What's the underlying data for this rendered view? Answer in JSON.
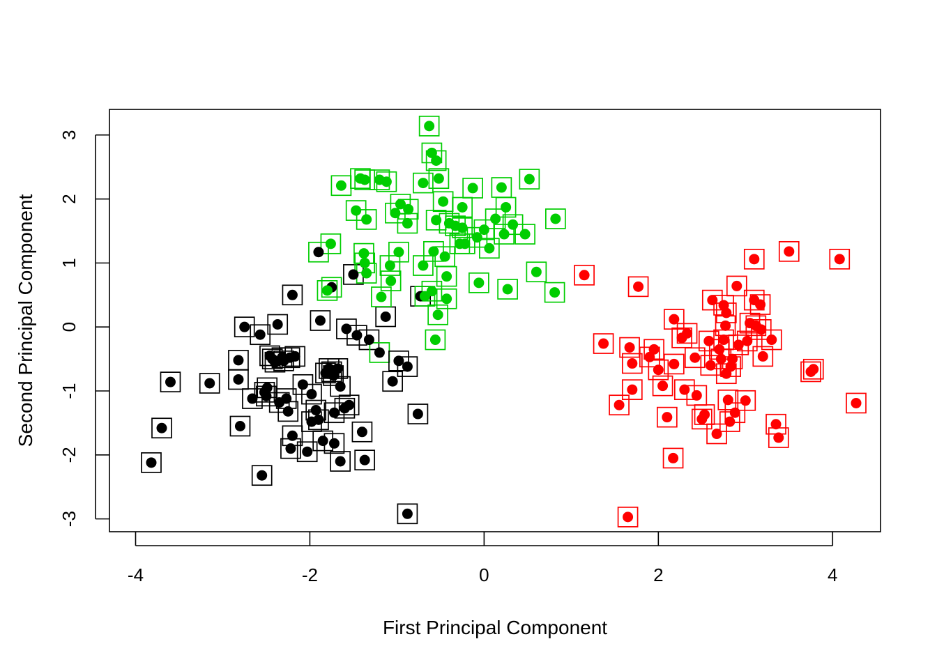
{
  "chart_data": {
    "type": "scatter",
    "title": "",
    "xlabel": "First Principal Component",
    "ylabel": "Second Principal Component",
    "xlim": [
      -4.3,
      4.55
    ],
    "ylim": [
      -3.2,
      3.4
    ],
    "x_ticks": [
      -4,
      -2,
      0,
      2,
      4
    ],
    "y_ticks": [
      -3,
      -2,
      -1,
      0,
      1,
      2,
      3
    ],
    "x_tick_labels": [
      "-4",
      "-2",
      "0",
      "2",
      "4"
    ],
    "y_tick_labels": [
      "-3",
      "-2",
      "-1",
      "0",
      "1",
      "2",
      "3"
    ],
    "grid": false,
    "legend": "none",
    "marker_encoding": "filled dot color = true class; square outline color = assigned cluster",
    "colors": {
      "black": "#000000",
      "green": "#00cd00",
      "red": "#ff0000"
    },
    "points": [
      {
        "x": -3.82,
        "y": -2.12,
        "dot": "black",
        "box": "black"
      },
      {
        "x": -3.7,
        "y": -1.58,
        "dot": "black",
        "box": "black"
      },
      {
        "x": -3.6,
        "y": -0.86,
        "dot": "black",
        "box": "black"
      },
      {
        "x": -3.15,
        "y": -0.88,
        "dot": "black",
        "box": "black"
      },
      {
        "x": -2.8,
        "y": -1.55,
        "dot": "black",
        "box": "black"
      },
      {
        "x": -2.82,
        "y": -0.82,
        "dot": "black",
        "box": "black"
      },
      {
        "x": -2.82,
        "y": -0.52,
        "dot": "black",
        "box": "black"
      },
      {
        "x": -2.75,
        "y": 0.0,
        "dot": "black",
        "box": "black"
      },
      {
        "x": -2.66,
        "y": -1.12,
        "dot": "black",
        "box": "black"
      },
      {
        "x": -2.57,
        "y": -0.12,
        "dot": "black",
        "box": "black"
      },
      {
        "x": -2.55,
        "y": -2.32,
        "dot": "black",
        "box": "black"
      },
      {
        "x": -2.52,
        "y": -1.02,
        "dot": "black",
        "box": "black"
      },
      {
        "x": -2.5,
        "y": -1.08,
        "dot": "black",
        "box": "black"
      },
      {
        "x": -2.49,
        "y": -0.95,
        "dot": "black",
        "box": "black"
      },
      {
        "x": -2.46,
        "y": -0.45,
        "dot": "black",
        "box": "black"
      },
      {
        "x": -2.43,
        "y": -0.5,
        "dot": "black",
        "box": "black"
      },
      {
        "x": -2.4,
        "y": -0.55,
        "dot": "black",
        "box": "black"
      },
      {
        "x": -2.37,
        "y": 0.04,
        "dot": "black",
        "box": "black"
      },
      {
        "x": -2.35,
        "y": -1.18,
        "dot": "black",
        "box": "black"
      },
      {
        "x": -2.32,
        "y": -0.48,
        "dot": "black",
        "box": "black"
      },
      {
        "x": -2.3,
        "y": -0.53,
        "dot": "black",
        "box": "black"
      },
      {
        "x": -2.27,
        "y": -1.12,
        "dot": "black",
        "box": "black"
      },
      {
        "x": -2.25,
        "y": -1.32,
        "dot": "black",
        "box": "black"
      },
      {
        "x": -2.23,
        "y": -0.48,
        "dot": "black",
        "box": "black"
      },
      {
        "x": -2.22,
        "y": -1.9,
        "dot": "black",
        "box": "black"
      },
      {
        "x": -2.2,
        "y": -1.7,
        "dot": "black",
        "box": "black"
      },
      {
        "x": -2.2,
        "y": 0.5,
        "dot": "black",
        "box": "black"
      },
      {
        "x": -2.17,
        "y": -0.46,
        "dot": "black",
        "box": "black"
      },
      {
        "x": -2.08,
        "y": -0.9,
        "dot": "black",
        "box": "black"
      },
      {
        "x": -1.98,
        "y": -1.05,
        "dot": "black",
        "box": "black"
      },
      {
        "x": -1.98,
        "y": -1.48,
        "dot": "black",
        "box": "black"
      },
      {
        "x": -2.03,
        "y": -1.95,
        "dot": "black",
        "box": "black"
      },
      {
        "x": -1.93,
        "y": -1.3,
        "dot": "black",
        "box": "black"
      },
      {
        "x": -1.9,
        "y": -1.45,
        "dot": "black",
        "box": "black"
      },
      {
        "x": -1.88,
        "y": 0.1,
        "dot": "black",
        "box": "black"
      },
      {
        "x": -1.85,
        "y": -1.78,
        "dot": "black",
        "box": "black"
      },
      {
        "x": -1.82,
        "y": -0.72,
        "dot": "black",
        "box": "black"
      },
      {
        "x": -1.78,
        "y": -0.65,
        "dot": "black",
        "box": "black"
      },
      {
        "x": -1.75,
        "y": -0.7,
        "dot": "black",
        "box": "black"
      },
      {
        "x": -1.73,
        "y": -0.76,
        "dot": "black",
        "box": "black"
      },
      {
        "x": -1.72,
        "y": -1.34,
        "dot": "black",
        "box": "black"
      },
      {
        "x": -1.72,
        "y": -1.82,
        "dot": "black",
        "box": "black"
      },
      {
        "x": -1.68,
        "y": -0.65,
        "dot": "black",
        "box": "black"
      },
      {
        "x": -1.65,
        "y": -0.93,
        "dot": "black",
        "box": "black"
      },
      {
        "x": -1.6,
        "y": -1.27,
        "dot": "black",
        "box": "black"
      },
      {
        "x": -1.65,
        "y": -2.1,
        "dot": "black",
        "box": "black"
      },
      {
        "x": -1.58,
        "y": -0.03,
        "dot": "black",
        "box": "black"
      },
      {
        "x": -1.55,
        "y": -1.22,
        "dot": "black",
        "box": "black"
      },
      {
        "x": -1.46,
        "y": -0.13,
        "dot": "black",
        "box": "black"
      },
      {
        "x": -1.4,
        "y": -1.64,
        "dot": "black",
        "box": "black"
      },
      {
        "x": -1.37,
        "y": -2.08,
        "dot": "black",
        "box": "black"
      },
      {
        "x": -1.32,
        "y": -0.2,
        "dot": "black",
        "box": "black"
      },
      {
        "x": -1.2,
        "y": -0.4,
        "dot": "black",
        "box": "green"
      },
      {
        "x": -1.13,
        "y": 0.16,
        "dot": "black",
        "box": "black"
      },
      {
        "x": -1.05,
        "y": -0.85,
        "dot": "black",
        "box": "black"
      },
      {
        "x": -0.98,
        "y": -0.53,
        "dot": "black",
        "box": "black"
      },
      {
        "x": -0.88,
        "y": -0.62,
        "dot": "black",
        "box": "black"
      },
      {
        "x": -0.88,
        "y": -2.92,
        "dot": "black",
        "box": "black"
      },
      {
        "x": -0.76,
        "y": -1.36,
        "dot": "black",
        "box": "black"
      },
      {
        "x": -1.9,
        "y": 1.17,
        "dot": "black",
        "box": "green"
      },
      {
        "x": -1.75,
        "y": 0.62,
        "dot": "black",
        "box": "green"
      },
      {
        "x": -1.5,
        "y": 0.82,
        "dot": "black",
        "box": "black"
      },
      {
        "x": -0.73,
        "y": 0.48,
        "dot": "black",
        "box": "black"
      },
      {
        "x": -1.76,
        "y": 1.3,
        "dot": "green",
        "box": "green"
      },
      {
        "x": -1.8,
        "y": 0.57,
        "dot": "green",
        "box": "green"
      },
      {
        "x": -1.64,
        "y": 2.21,
        "dot": "green",
        "box": "green"
      },
      {
        "x": -1.47,
        "y": 1.82,
        "dot": "green",
        "box": "green"
      },
      {
        "x": -1.42,
        "y": 2.32,
        "dot": "green",
        "box": "green"
      },
      {
        "x": -1.37,
        "y": 2.3,
        "dot": "green",
        "box": "green"
      },
      {
        "x": -1.35,
        "y": 1.68,
        "dot": "green",
        "box": "green"
      },
      {
        "x": -1.38,
        "y": 1.15,
        "dot": "green",
        "box": "green"
      },
      {
        "x": -1.37,
        "y": 1.0,
        "dot": "green",
        "box": "green"
      },
      {
        "x": -1.35,
        "y": 0.84,
        "dot": "green",
        "box": "green"
      },
      {
        "x": -1.2,
        "y": 2.3,
        "dot": "green",
        "box": "green"
      },
      {
        "x": -1.12,
        "y": 2.27,
        "dot": "green",
        "box": "green"
      },
      {
        "x": -1.08,
        "y": 0.96,
        "dot": "green",
        "box": "green"
      },
      {
        "x": -1.07,
        "y": 0.72,
        "dot": "green",
        "box": "green"
      },
      {
        "x": -1.18,
        "y": 0.47,
        "dot": "green",
        "box": "green"
      },
      {
        "x": -1.02,
        "y": 1.78,
        "dot": "green",
        "box": "green"
      },
      {
        "x": -0.98,
        "y": 1.17,
        "dot": "green",
        "box": "green"
      },
      {
        "x": -0.96,
        "y": 1.92,
        "dot": "green",
        "box": "green"
      },
      {
        "x": -0.88,
        "y": 1.62,
        "dot": "green",
        "box": "green"
      },
      {
        "x": -0.87,
        "y": 1.84,
        "dot": "green",
        "box": "green"
      },
      {
        "x": -0.7,
        "y": 2.25,
        "dot": "green",
        "box": "green"
      },
      {
        "x": -0.7,
        "y": 0.96,
        "dot": "green",
        "box": "green"
      },
      {
        "x": -0.68,
        "y": 0.48,
        "dot": "green",
        "box": "green"
      },
      {
        "x": -0.63,
        "y": 3.14,
        "dot": "green",
        "box": "green"
      },
      {
        "x": -0.6,
        "y": 2.72,
        "dot": "green",
        "box": "green"
      },
      {
        "x": -0.58,
        "y": 1.18,
        "dot": "green",
        "box": "green"
      },
      {
        "x": -0.6,
        "y": 0.56,
        "dot": "green",
        "box": "green"
      },
      {
        "x": -0.55,
        "y": 2.6,
        "dot": "green",
        "box": "green"
      },
      {
        "x": -0.55,
        "y": 1.67,
        "dot": "green",
        "box": "green"
      },
      {
        "x": -0.53,
        "y": 0.19,
        "dot": "green",
        "box": "green"
      },
      {
        "x": -0.56,
        "y": -0.2,
        "dot": "green",
        "box": "green"
      },
      {
        "x": -0.52,
        "y": 2.32,
        "dot": "green",
        "box": "green"
      },
      {
        "x": -0.47,
        "y": 1.96,
        "dot": "green",
        "box": "green"
      },
      {
        "x": -0.45,
        "y": 1.1,
        "dot": "green",
        "box": "green"
      },
      {
        "x": -0.43,
        "y": 0.79,
        "dot": "green",
        "box": "green"
      },
      {
        "x": -0.43,
        "y": 0.44,
        "dot": "green",
        "box": "green"
      },
      {
        "x": -0.4,
        "y": 1.62,
        "dot": "green",
        "box": "green"
      },
      {
        "x": -0.33,
        "y": 1.58,
        "dot": "green",
        "box": "green"
      },
      {
        "x": -0.28,
        "y": 1.3,
        "dot": "green",
        "box": "green"
      },
      {
        "x": -0.25,
        "y": 1.87,
        "dot": "green",
        "box": "green"
      },
      {
        "x": -0.25,
        "y": 1.55,
        "dot": "green",
        "box": "green"
      },
      {
        "x": -0.22,
        "y": 1.3,
        "dot": "green",
        "box": "green"
      },
      {
        "x": -0.13,
        "y": 2.17,
        "dot": "green",
        "box": "green"
      },
      {
        "x": -0.08,
        "y": 1.4,
        "dot": "green",
        "box": "green"
      },
      {
        "x": -0.06,
        "y": 0.69,
        "dot": "green",
        "box": "green"
      },
      {
        "x": 0.0,
        "y": 1.52,
        "dot": "green",
        "box": "green"
      },
      {
        "x": 0.06,
        "y": 1.23,
        "dot": "green",
        "box": "green"
      },
      {
        "x": 0.13,
        "y": 1.69,
        "dot": "green",
        "box": "green"
      },
      {
        "x": 0.2,
        "y": 2.18,
        "dot": "green",
        "box": "green"
      },
      {
        "x": 0.23,
        "y": 1.45,
        "dot": "green",
        "box": "green"
      },
      {
        "x": 0.25,
        "y": 1.87,
        "dot": "green",
        "box": "green"
      },
      {
        "x": 0.27,
        "y": 0.59,
        "dot": "green",
        "box": "green"
      },
      {
        "x": 0.33,
        "y": 1.6,
        "dot": "green",
        "box": "green"
      },
      {
        "x": 0.47,
        "y": 1.45,
        "dot": "green",
        "box": "green"
      },
      {
        "x": 0.52,
        "y": 2.31,
        "dot": "green",
        "box": "green"
      },
      {
        "x": 0.6,
        "y": 0.86,
        "dot": "green",
        "box": "green"
      },
      {
        "x": 0.82,
        "y": 1.69,
        "dot": "green",
        "box": "green"
      },
      {
        "x": 0.81,
        "y": 0.54,
        "dot": "green",
        "box": "green"
      },
      {
        "x": 1.15,
        "y": 0.81,
        "dot": "red",
        "box": "red"
      },
      {
        "x": 1.37,
        "y": -0.26,
        "dot": "red",
        "box": "red"
      },
      {
        "x": 1.55,
        "y": -1.22,
        "dot": "red",
        "box": "red"
      },
      {
        "x": 1.65,
        "y": -2.97,
        "dot": "red",
        "box": "red"
      },
      {
        "x": 1.67,
        "y": -0.32,
        "dot": "red",
        "box": "red"
      },
      {
        "x": 1.7,
        "y": -0.57,
        "dot": "red",
        "box": "red"
      },
      {
        "x": 1.7,
        "y": -0.98,
        "dot": "red",
        "box": "red"
      },
      {
        "x": 1.77,
        "y": 0.63,
        "dot": "red",
        "box": "red"
      },
      {
        "x": 1.9,
        "y": -0.47,
        "dot": "red",
        "box": "red"
      },
      {
        "x": 1.95,
        "y": -0.35,
        "dot": "red",
        "box": "red"
      },
      {
        "x": 2.0,
        "y": -0.67,
        "dot": "red",
        "box": "red"
      },
      {
        "x": 2.05,
        "y": -0.92,
        "dot": "red",
        "box": "red"
      },
      {
        "x": 2.1,
        "y": -1.41,
        "dot": "red",
        "box": "red"
      },
      {
        "x": 2.17,
        "y": -2.05,
        "dot": "red",
        "box": "red"
      },
      {
        "x": 2.18,
        "y": 0.12,
        "dot": "red",
        "box": "red"
      },
      {
        "x": 2.18,
        "y": -0.58,
        "dot": "red",
        "box": "red"
      },
      {
        "x": 2.27,
        "y": -0.17,
        "dot": "red",
        "box": "red"
      },
      {
        "x": 2.3,
        "y": -0.98,
        "dot": "red",
        "box": "red"
      },
      {
        "x": 2.33,
        "y": -0.1,
        "dot": "red",
        "box": "red"
      },
      {
        "x": 2.42,
        "y": -0.48,
        "dot": "red",
        "box": "red"
      },
      {
        "x": 2.44,
        "y": -1.07,
        "dot": "red",
        "box": "red"
      },
      {
        "x": 2.5,
        "y": -1.44,
        "dot": "red",
        "box": "red"
      },
      {
        "x": 2.53,
        "y": -1.37,
        "dot": "red",
        "box": "red"
      },
      {
        "x": 2.58,
        "y": -0.22,
        "dot": "red",
        "box": "red"
      },
      {
        "x": 2.6,
        "y": -0.6,
        "dot": "red",
        "box": "red"
      },
      {
        "x": 2.62,
        "y": 0.42,
        "dot": "red",
        "box": "red"
      },
      {
        "x": 2.67,
        "y": -1.67,
        "dot": "red",
        "box": "red"
      },
      {
        "x": 2.7,
        "y": -0.35,
        "dot": "red",
        "box": "red"
      },
      {
        "x": 2.72,
        "y": -0.5,
        "dot": "red",
        "box": "red"
      },
      {
        "x": 2.75,
        "y": 0.34,
        "dot": "red",
        "box": "red"
      },
      {
        "x": 2.75,
        "y": -0.2,
        "dot": "red",
        "box": "red"
      },
      {
        "x": 2.77,
        "y": 0.02,
        "dot": "red",
        "box": "red"
      },
      {
        "x": 2.78,
        "y": 0.22,
        "dot": "red",
        "box": "red"
      },
      {
        "x": 2.78,
        "y": -0.73,
        "dot": "red",
        "box": "red"
      },
      {
        "x": 2.8,
        "y": -1.14,
        "dot": "red",
        "box": "red"
      },
      {
        "x": 2.82,
        "y": -1.48,
        "dot": "red",
        "box": "red"
      },
      {
        "x": 2.83,
        "y": -0.62,
        "dot": "red",
        "box": "red"
      },
      {
        "x": 2.85,
        "y": -0.5,
        "dot": "red",
        "box": "red"
      },
      {
        "x": 2.88,
        "y": -1.34,
        "dot": "red",
        "box": "red"
      },
      {
        "x": 2.9,
        "y": 0.64,
        "dot": "red",
        "box": "red"
      },
      {
        "x": 2.92,
        "y": -0.28,
        "dot": "red",
        "box": "red"
      },
      {
        "x": 3.0,
        "y": -1.15,
        "dot": "red",
        "box": "red"
      },
      {
        "x": 3.02,
        "y": -0.22,
        "dot": "red",
        "box": "red"
      },
      {
        "x": 3.05,
        "y": 0.06,
        "dot": "red",
        "box": "red"
      },
      {
        "x": 3.1,
        "y": 1.06,
        "dot": "red",
        "box": "red"
      },
      {
        "x": 3.1,
        "y": 0.42,
        "dot": "red",
        "box": "red"
      },
      {
        "x": 3.12,
        "y": 0.02,
        "dot": "red",
        "box": "red"
      },
      {
        "x": 3.17,
        "y": 0.35,
        "dot": "red",
        "box": "red"
      },
      {
        "x": 3.18,
        "y": -0.04,
        "dot": "red",
        "box": "red"
      },
      {
        "x": 3.2,
        "y": -0.46,
        "dot": "red",
        "box": "red"
      },
      {
        "x": 3.3,
        "y": -0.2,
        "dot": "red",
        "box": "red"
      },
      {
        "x": 3.35,
        "y": -1.52,
        "dot": "red",
        "box": "red"
      },
      {
        "x": 3.38,
        "y": -1.73,
        "dot": "red",
        "box": "red"
      },
      {
        "x": 3.5,
        "y": 1.18,
        "dot": "red",
        "box": "red"
      },
      {
        "x": 3.75,
        "y": -0.7,
        "dot": "red",
        "box": "red"
      },
      {
        "x": 3.78,
        "y": -0.66,
        "dot": "red",
        "box": "red"
      },
      {
        "x": 4.08,
        "y": 1.06,
        "dot": "red",
        "box": "red"
      },
      {
        "x": 4.27,
        "y": -1.19,
        "dot": "red",
        "box": "red"
      }
    ]
  }
}
